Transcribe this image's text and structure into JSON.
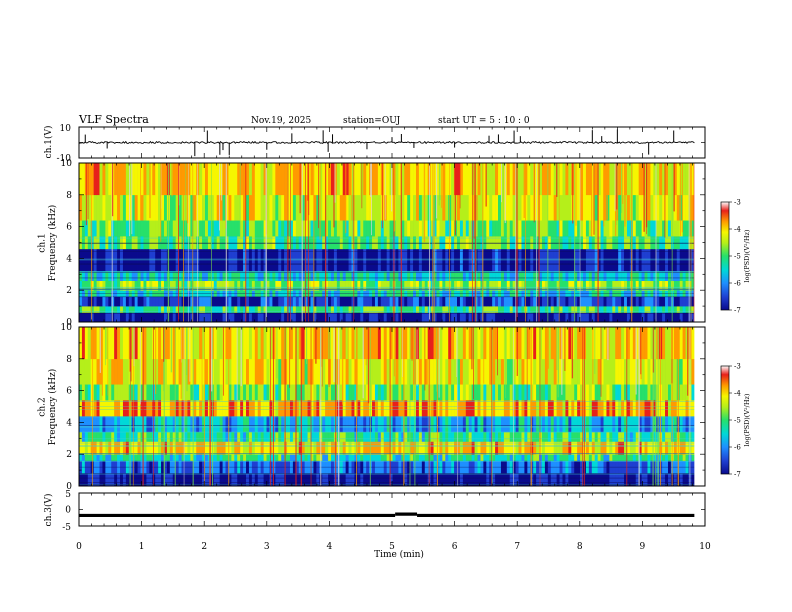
{
  "header": {
    "title": "VLF Spectra",
    "date": "Nov.19, 2025",
    "station": "station=OUJ",
    "start": "start  UT =  5 : 10 : 0"
  },
  "colors": {
    "background": "#ffffff",
    "axis": "#000000",
    "trace": "#000000",
    "colormap": [
      "#0a0a8c",
      "#1f3fd1",
      "#1e90ff",
      "#00d8d8",
      "#27e06a",
      "#b5ef1a",
      "#f6f600",
      "#ff9a00",
      "#e8201a",
      "#c0101a"
    ]
  },
  "chart_data": [
    {
      "id": "ch1-waveform",
      "type": "line",
      "ylabel": "ch.1(V)",
      "ylim": [
        -10,
        10
      ],
      "yticks": [
        "10",
        "-10"
      ],
      "xlim": [
        0,
        10
      ],
      "baseline": 0,
      "description_values": {
        "typical_amplitude": 0.6,
        "spikes_at_min": [
          0.1,
          0.45,
          1.85,
          2.05,
          2.25,
          2.3,
          2.4,
          3.0,
          3.4,
          3.9,
          3.98,
          4.05,
          4.6,
          5.0,
          5.15,
          5.35,
          6.0,
          6.55,
          6.7,
          6.95,
          7.05,
          8.2,
          8.35,
          8.6,
          9.1,
          9.5
        ]
      }
    },
    {
      "id": "ch1-spectrogram",
      "type": "heatmap",
      "ylabel": "ch.1\nFrequency (kHz)",
      "ylim": [
        0,
        10
      ],
      "yticks": [
        "0",
        "2",
        "4",
        "6",
        "8",
        "10"
      ],
      "xlim": [
        0,
        10
      ],
      "colorbar": {
        "label": "log(PSD)(V²/Hz)",
        "range": [
          -7,
          -3
        ],
        "ticks": [
          "-3",
          "-4",
          "-5",
          "-6",
          "-7"
        ]
      },
      "bands_khz": [
        {
          "from": 0.0,
          "to": 0.6,
          "level": -6.9
        },
        {
          "from": 0.6,
          "to": 1.0,
          "level": -5.2
        },
        {
          "from": 1.0,
          "to": 1.6,
          "level": -6.4
        },
        {
          "from": 1.6,
          "to": 2.0,
          "level": -5.6
        },
        {
          "from": 2.0,
          "to": 2.6,
          "level": -4.9
        },
        {
          "from": 2.6,
          "to": 3.2,
          "level": -5.6
        },
        {
          "from": 3.2,
          "to": 4.6,
          "level": -6.7
        },
        {
          "from": 4.6,
          "to": 5.4,
          "level": -5.1
        },
        {
          "from": 5.4,
          "to": 6.4,
          "level": -5.0
        },
        {
          "from": 6.4,
          "to": 8.0,
          "level": -4.6
        },
        {
          "from": 8.0,
          "to": 10.0,
          "level": -4.3
        }
      ]
    },
    {
      "id": "ch2-spectrogram",
      "type": "heatmap",
      "ylabel": "ch.2\nFrequency (kHz)",
      "ylim": [
        0,
        10
      ],
      "yticks": [
        "0",
        "2",
        "4",
        "6",
        "8",
        "10"
      ],
      "xlim": [
        0,
        10
      ],
      "colorbar": {
        "label": "log(PSD)(V²/Hz)",
        "range": [
          -7,
          -3
        ],
        "ticks": [
          "-3",
          "-4",
          "-5",
          "-6",
          "-7"
        ]
      },
      "bands_khz": [
        {
          "from": 0.0,
          "to": 0.8,
          "level": -6.8
        },
        {
          "from": 0.8,
          "to": 1.6,
          "level": -6.2
        },
        {
          "from": 1.6,
          "to": 2.0,
          "level": -5.4
        },
        {
          "from": 2.0,
          "to": 2.8,
          "level": -4.3
        },
        {
          "from": 2.8,
          "to": 3.4,
          "level": -5.3
        },
        {
          "from": 3.4,
          "to": 4.4,
          "level": -5.8
        },
        {
          "from": 4.4,
          "to": 5.4,
          "level": -4.1
        },
        {
          "from": 5.4,
          "to": 6.4,
          "level": -5.0
        },
        {
          "from": 6.4,
          "to": 8.0,
          "level": -4.5
        },
        {
          "from": 8.0,
          "to": 10.0,
          "level": -4.3
        }
      ]
    },
    {
      "id": "ch3-waveform",
      "type": "line",
      "ylabel": "ch.3(V)",
      "ylim": [
        -5,
        5
      ],
      "yticks": [
        "5",
        "0",
        "-5"
      ],
      "xlim": [
        0,
        10
      ],
      "xlabel": "Time (min)",
      "xticks": [
        "0",
        "1",
        "2",
        "3",
        "4",
        "5",
        "6",
        "7",
        "8",
        "9",
        "10"
      ],
      "segments": [
        {
          "from": 0.0,
          "to": 5.05,
          "value": -1.8
        },
        {
          "from": 5.05,
          "to": 5.4,
          "value": -1.4
        },
        {
          "from": 5.4,
          "to": 9.83,
          "value": -1.8
        }
      ]
    }
  ]
}
